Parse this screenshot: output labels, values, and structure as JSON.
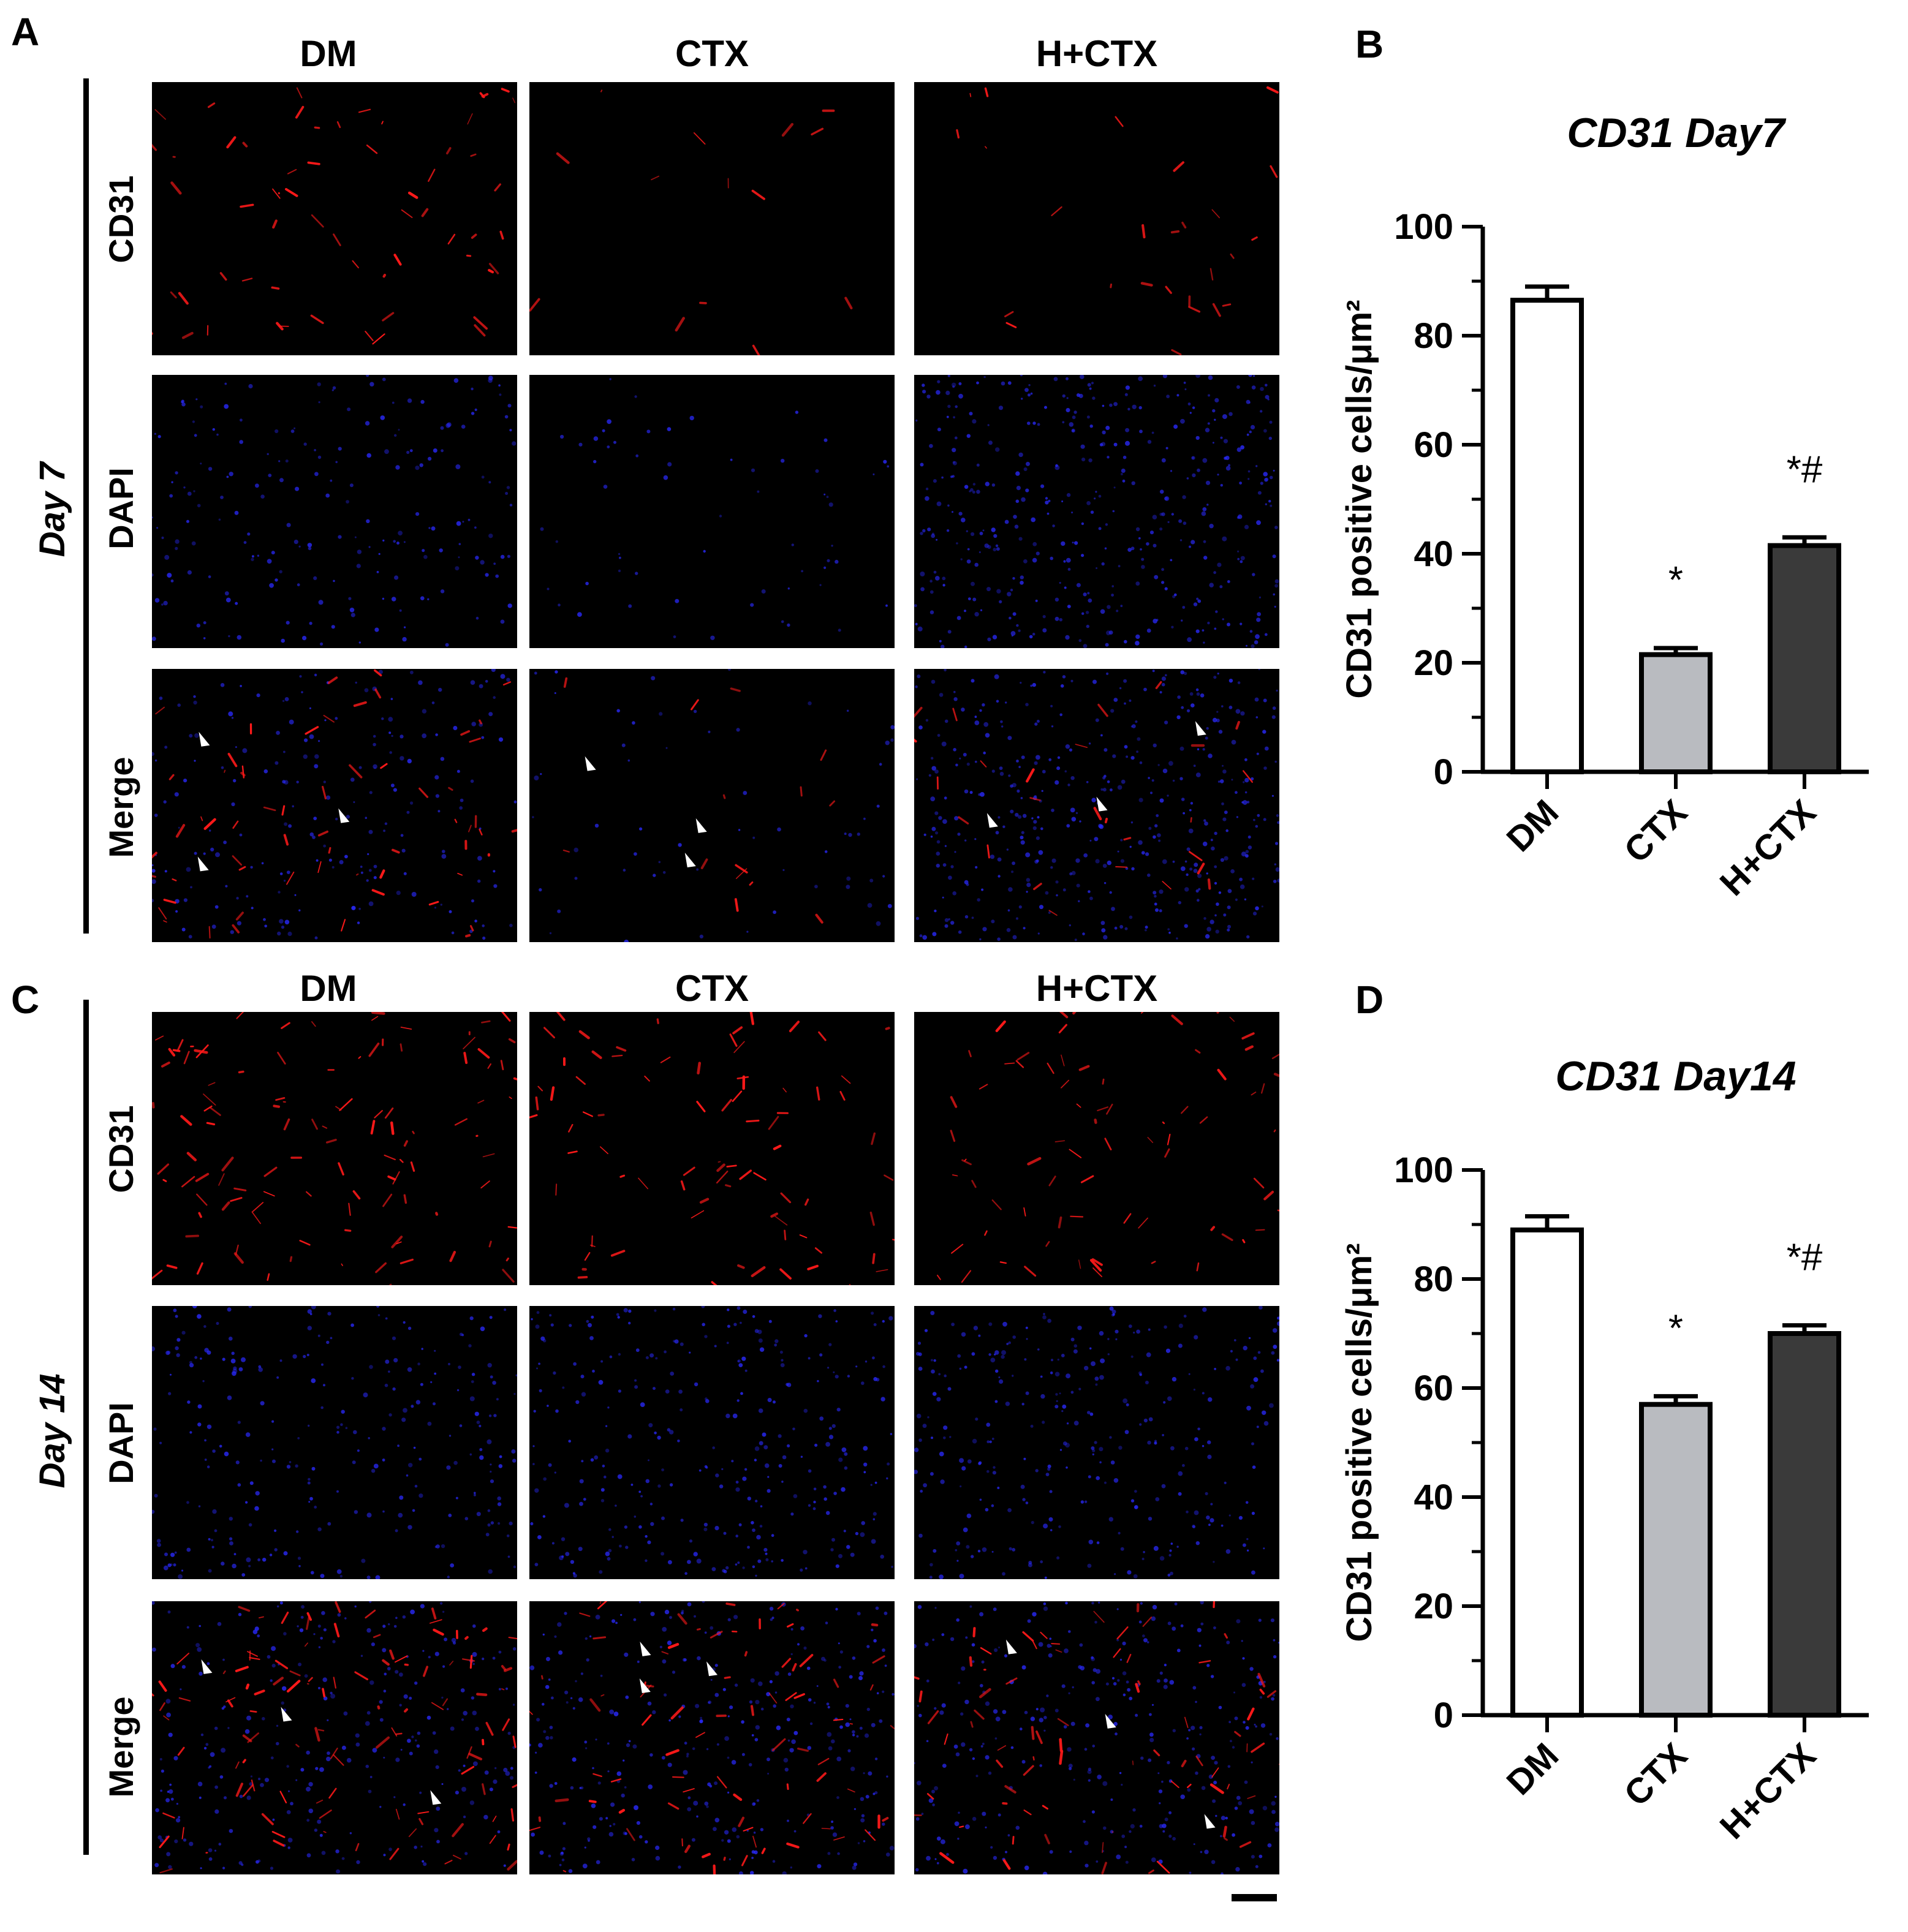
{
  "panels": {
    "a": "A",
    "b": "B",
    "c": "C",
    "d": "D"
  },
  "columns": [
    "DM",
    "CTX",
    "H+CTX"
  ],
  "rows": [
    "CD31",
    "DAPI",
    "Merge"
  ],
  "day7_label": "Day 7",
  "day14_label": "Day 14",
  "colors": {
    "cd31": "#ff1a1a",
    "dapi": "#2a2aff",
    "dm_bar": "#ffffff",
    "ctx_bar": "#b9bbc0",
    "hctx_bar": "#3a3a3a"
  },
  "chart_data": [
    {
      "type": "bar",
      "title": "CD31 Day7",
      "ylabel": "CD31 positive cells/μm²",
      "xlabel": "",
      "categories": [
        "DM",
        "CTX",
        "H+CTX"
      ],
      "values": [
        86.5,
        21.5,
        41.5
      ],
      "errors": [
        2.5,
        1.2,
        1.5
      ],
      "annotations": [
        "",
        "*",
        "*#"
      ],
      "ylim": [
        0,
        100
      ],
      "yticks": [
        0,
        20,
        40,
        60,
        80,
        100
      ],
      "grid": false
    },
    {
      "type": "bar",
      "title": "CD31 Day14",
      "ylabel": "CD31 positive cells/μm²",
      "xlabel": "",
      "categories": [
        "DM",
        "CTX",
        "H+CTX"
      ],
      "values": [
        89,
        57,
        70
      ],
      "errors": [
        2.5,
        1.5,
        1.5
      ],
      "annotations": [
        "",
        "*",
        "*#"
      ],
      "ylim": [
        0,
        100
      ],
      "yticks": [
        0,
        20,
        40,
        60,
        80,
        100
      ],
      "grid": false
    }
  ]
}
